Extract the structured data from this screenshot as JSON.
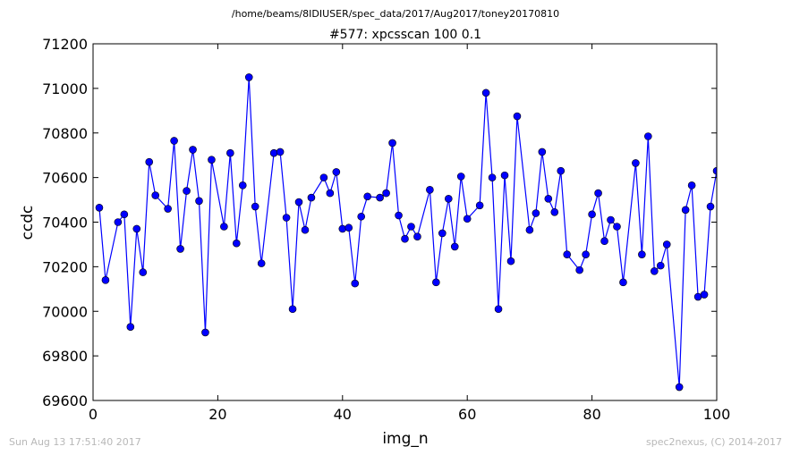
{
  "header": {
    "path": "/home/beams/8IDIUSER/spec_data/2017/Aug2017/toney20170810"
  },
  "footer": {
    "timestamp": "Sun Aug 13 17:51:40 2017",
    "credit": "spec2nexus, (C) 2014-2017"
  },
  "colors": {
    "series": "#0000ff",
    "axes": "#000000",
    "footer": "#b8b8b8"
  },
  "chart_data": {
    "type": "line",
    "title": "#577: xpcsscan 100 0.1",
    "xlabel": "img_n",
    "ylabel": "ccdc",
    "xlim": [
      0,
      100
    ],
    "ylim": [
      69600,
      71200
    ],
    "xticks": [
      0,
      20,
      40,
      60,
      80,
      100
    ],
    "yticks": [
      69600,
      69800,
      70000,
      70200,
      70400,
      70600,
      70800,
      71000,
      71200
    ],
    "grid": false,
    "markers": true,
    "series": [
      {
        "x": [
          1,
          2,
          4,
          5,
          6,
          7,
          8,
          9,
          10,
          12,
          13,
          14,
          15,
          16,
          17,
          18,
          19,
          21,
          22,
          23,
          24,
          25,
          26,
          27,
          29,
          30,
          31,
          32,
          33,
          34,
          35,
          37,
          38,
          39,
          40,
          41,
          42,
          43,
          44,
          46,
          47,
          48,
          49,
          50,
          51,
          52,
          54,
          55,
          56,
          57,
          58,
          59,
          60,
          62,
          63,
          64,
          65,
          66,
          67,
          68,
          70,
          71,
          72,
          73,
          74,
          75,
          76,
          78,
          79,
          80,
          81,
          82,
          83,
          84,
          85,
          87,
          88,
          89,
          90,
          91,
          92,
          94,
          95,
          96,
          97,
          98,
          99,
          100
        ],
        "values": [
          70465,
          70140,
          70400,
          70435,
          69930,
          70370,
          70175,
          70670,
          70520,
          70460,
          70765,
          70280,
          70540,
          70725,
          70495,
          69905,
          70680,
          70380,
          70710,
          70305,
          70565,
          71050,
          70470,
          70215,
          70710,
          70715,
          70420,
          70010,
          70490,
          70365,
          70510,
          70600,
          70530,
          70625,
          70370,
          70375,
          70125,
          70425,
          70515,
          70510,
          70530,
          70755,
          70430,
          70325,
          70380,
          70335,
          70545,
          70130,
          70350,
          70505,
          70290,
          70605,
          70415,
          70475,
          70980,
          70600,
          70010,
          70610,
          70225,
          70875,
          70365,
          70440,
          70715,
          70505,
          70445,
          70630,
          70255,
          70185,
          70255,
          70435,
          70530,
          70315,
          70410,
          70380,
          70130,
          70665,
          70255,
          70785,
          70180,
          70205,
          70300,
          69660,
          70455,
          70565,
          70065,
          70075,
          70470,
          70630
        ]
      }
    ]
  }
}
